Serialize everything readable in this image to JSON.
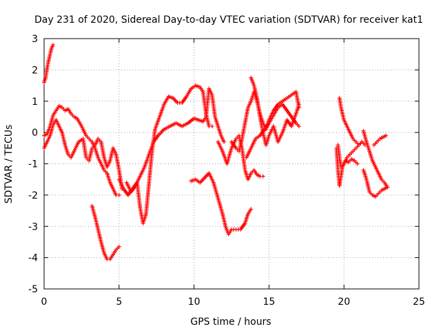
{
  "chart_data": {
    "type": "scatter",
    "title": "Day 231 of 2020, Sidereal Day-to-day VTEC variation (SDTVAR) for receiver kat1",
    "xlabel": "GPS time / hours",
    "ylabel": "SDTVAR / TECUs",
    "xlim": [
      0,
      25
    ],
    "ylim": [
      -5,
      3
    ],
    "xticks": [
      0,
      5,
      10,
      15,
      20,
      25
    ],
    "yticks": [
      -5,
      -4,
      -3,
      -2,
      -1,
      0,
      1,
      2,
      3
    ],
    "grid": true,
    "marker": "+",
    "color": "#ff0000",
    "series": [
      {
        "name": "trace-1",
        "points": [
          [
            0.0,
            1.6
          ],
          [
            0.1,
            1.75
          ],
          [
            0.2,
            2.05
          ],
          [
            0.3,
            2.3
          ],
          [
            0.4,
            2.5
          ],
          [
            0.5,
            2.7
          ],
          [
            0.6,
            2.8
          ]
        ]
      },
      {
        "name": "trace-2",
        "points": [
          [
            0.0,
            -0.1
          ],
          [
            0.2,
            -0.05
          ],
          [
            0.4,
            0.2
          ],
          [
            0.6,
            0.55
          ],
          [
            0.8,
            0.7
          ],
          [
            1.0,
            0.85
          ],
          [
            1.2,
            0.8
          ],
          [
            1.4,
            0.7
          ],
          [
            1.6,
            0.75
          ],
          [
            1.8,
            0.6
          ],
          [
            2.0,
            0.5
          ],
          [
            2.2,
            0.45
          ],
          [
            2.5,
            0.2
          ],
          [
            2.8,
            -0.1
          ],
          [
            3.0,
            -0.2
          ],
          [
            3.2,
            -0.3
          ],
          [
            3.4,
            -0.5
          ],
          [
            3.6,
            -0.8
          ],
          [
            3.8,
            -1.0
          ],
          [
            4.0,
            -1.2
          ],
          [
            4.2,
            -1.3
          ],
          [
            4.4,
            -1.6
          ],
          [
            4.6,
            -1.8
          ],
          [
            4.8,
            -2.0
          ],
          [
            5.0,
            -2.0
          ]
        ]
      },
      {
        "name": "trace-3",
        "points": [
          [
            0.0,
            -0.5
          ],
          [
            0.2,
            -0.3
          ],
          [
            0.4,
            -0.1
          ],
          [
            0.6,
            0.25
          ],
          [
            0.8,
            0.4
          ],
          [
            1.0,
            0.2
          ],
          [
            1.2,
            0.0
          ],
          [
            1.4,
            -0.4
          ],
          [
            1.6,
            -0.7
          ],
          [
            1.8,
            -0.8
          ],
          [
            2.0,
            -0.6
          ],
          [
            2.3,
            -0.3
          ],
          [
            2.6,
            -0.2
          ],
          [
            2.8,
            -0.8
          ],
          [
            3.0,
            -0.9
          ],
          [
            3.2,
            -0.5
          ],
          [
            3.4,
            -0.4
          ],
          [
            3.6,
            -0.2
          ],
          [
            3.8,
            -0.3
          ],
          [
            4.0,
            -0.8
          ],
          [
            4.2,
            -1.1
          ],
          [
            4.4,
            -0.9
          ],
          [
            4.6,
            -0.5
          ],
          [
            4.8,
            -0.7
          ],
          [
            5.0,
            -1.2
          ],
          [
            5.2,
            -1.8
          ]
        ]
      },
      {
        "name": "trace-4",
        "points": [
          [
            3.2,
            -2.35
          ],
          [
            3.4,
            -2.7
          ],
          [
            3.6,
            -3.1
          ],
          [
            3.8,
            -3.5
          ],
          [
            4.0,
            -3.85
          ],
          [
            4.2,
            -4.05
          ],
          [
            4.4,
            -4.05
          ],
          [
            4.6,
            -3.9
          ],
          [
            4.8,
            -3.75
          ],
          [
            5.0,
            -3.65
          ]
        ]
      },
      {
        "name": "trace-5",
        "points": [
          [
            5.0,
            -1.5
          ],
          [
            5.3,
            -1.8
          ],
          [
            5.6,
            -2.0
          ],
          [
            5.9,
            -1.8
          ],
          [
            6.2,
            -1.6
          ],
          [
            6.4,
            -2.4
          ],
          [
            6.6,
            -2.9
          ],
          [
            6.8,
            -2.6
          ],
          [
            7.0,
            -1.6
          ],
          [
            7.2,
            -0.6
          ],
          [
            7.4,
            0.1
          ],
          [
            7.7,
            0.5
          ],
          [
            8.0,
            0.9
          ],
          [
            8.3,
            1.15
          ],
          [
            8.6,
            1.1
          ],
          [
            8.9,
            0.95
          ],
          [
            9.2,
            0.95
          ],
          [
            9.5,
            1.15
          ],
          [
            9.8,
            1.4
          ],
          [
            10.1,
            1.5
          ],
          [
            10.4,
            1.45
          ],
          [
            10.6,
            1.3
          ],
          [
            10.8,
            0.6
          ],
          [
            11.0,
            0.2
          ],
          [
            11.2,
            0.2
          ]
        ]
      },
      {
        "name": "trace-6",
        "points": [
          [
            5.5,
            -1.6
          ],
          [
            5.8,
            -1.9
          ],
          [
            6.1,
            -1.7
          ],
          [
            6.4,
            -1.4
          ],
          [
            6.7,
            -1.1
          ],
          [
            7.0,
            -0.7
          ],
          [
            7.3,
            -0.3
          ],
          [
            7.6,
            -0.1
          ],
          [
            8.0,
            0.1
          ],
          [
            8.4,
            0.2
          ],
          [
            8.8,
            0.3
          ],
          [
            9.2,
            0.2
          ],
          [
            9.6,
            0.3
          ],
          [
            10.0,
            0.45
          ],
          [
            10.3,
            0.4
          ],
          [
            10.6,
            0.35
          ],
          [
            10.8,
            0.5
          ],
          [
            11.0,
            1.4
          ],
          [
            11.2,
            1.2
          ],
          [
            11.4,
            0.5
          ],
          [
            11.6,
            0.2
          ],
          [
            11.8,
            -0.1
          ],
          [
            12.0,
            -0.3
          ]
        ]
      },
      {
        "name": "trace-7",
        "points": [
          [
            9.8,
            -1.55
          ],
          [
            10.1,
            -1.5
          ],
          [
            10.4,
            -1.6
          ],
          [
            10.7,
            -1.45
          ],
          [
            11.0,
            -1.3
          ],
          [
            11.3,
            -1.6
          ],
          [
            11.6,
            -2.1
          ],
          [
            11.9,
            -2.6
          ],
          [
            12.1,
            -3.0
          ],
          [
            12.3,
            -3.25
          ],
          [
            12.5,
            -3.1
          ],
          [
            12.8,
            -3.1
          ],
          [
            13.1,
            -3.1
          ],
          [
            13.4,
            -2.9
          ],
          [
            13.6,
            -2.6
          ],
          [
            13.8,
            -2.45
          ]
        ]
      },
      {
        "name": "trace-8",
        "points": [
          [
            11.6,
            -0.3
          ],
          [
            11.9,
            -0.6
          ],
          [
            12.2,
            -1.0
          ],
          [
            12.5,
            -0.5
          ],
          [
            12.8,
            -0.2
          ],
          [
            13.0,
            -0.1
          ],
          [
            13.2,
            -0.5
          ],
          [
            13.4,
            -1.2
          ],
          [
            13.6,
            -1.5
          ],
          [
            13.8,
            -1.3
          ],
          [
            14.0,
            -1.2
          ],
          [
            14.2,
            -1.35
          ],
          [
            14.4,
            -1.4
          ],
          [
            14.6,
            -1.4
          ]
        ]
      },
      {
        "name": "trace-9",
        "points": [
          [
            12.5,
            -0.3
          ],
          [
            12.8,
            -0.5
          ],
          [
            13.0,
            -0.6
          ],
          [
            13.2,
            -0.2
          ],
          [
            13.4,
            0.3
          ],
          [
            13.6,
            0.8
          ],
          [
            13.8,
            1.0
          ],
          [
            14.0,
            1.3
          ],
          [
            14.2,
            1.0
          ],
          [
            14.4,
            0.6
          ],
          [
            14.6,
            0.3
          ],
          [
            14.8,
            0.1
          ],
          [
            15.0,
            0.4
          ],
          [
            15.3,
            0.7
          ],
          [
            15.6,
            0.9
          ],
          [
            15.9,
            1.0
          ],
          [
            16.2,
            1.1
          ],
          [
            16.5,
            1.2
          ],
          [
            16.8,
            1.3
          ],
          [
            17.0,
            0.8
          ]
        ]
      },
      {
        "name": "trace-10",
        "points": [
          [
            13.5,
            -0.8
          ],
          [
            13.8,
            -0.5
          ],
          [
            14.1,
            -0.2
          ],
          [
            14.4,
            -0.1
          ],
          [
            14.7,
            0.1
          ],
          [
            15.0,
            0.3
          ],
          [
            15.3,
            0.55
          ],
          [
            15.6,
            0.8
          ],
          [
            15.9,
            0.9
          ],
          [
            16.2,
            0.7
          ],
          [
            16.5,
            0.5
          ],
          [
            16.8,
            0.3
          ],
          [
            17.0,
            0.2
          ]
        ]
      },
      {
        "name": "trace-11",
        "points": [
          [
            13.8,
            1.75
          ],
          [
            14.0,
            1.5
          ],
          [
            14.2,
            1.1
          ],
          [
            14.4,
            0.5
          ],
          [
            14.6,
            0.0
          ],
          [
            14.8,
            -0.4
          ],
          [
            15.0,
            -0.1
          ],
          [
            15.3,
            0.2
          ],
          [
            15.6,
            -0.3
          ],
          [
            15.9,
            0.0
          ],
          [
            16.2,
            0.4
          ],
          [
            16.5,
            0.2
          ],
          [
            16.8,
            0.6
          ],
          [
            17.0,
            0.9
          ]
        ]
      },
      {
        "name": "trace-12",
        "points": [
          [
            19.7,
            1.1
          ],
          [
            19.8,
            0.8
          ],
          [
            20.0,
            0.4
          ],
          [
            20.2,
            0.2
          ],
          [
            20.4,
            0.0
          ],
          [
            20.6,
            -0.2
          ],
          [
            20.8,
            -0.3
          ],
          [
            21.0,
            -0.4
          ],
          [
            21.2,
            -0.3
          ],
          [
            21.4,
            -0.4
          ]
        ]
      },
      {
        "name": "trace-13",
        "points": [
          [
            19.6,
            -0.4
          ],
          [
            19.7,
            -0.8
          ],
          [
            19.8,
            -1.1
          ],
          [
            20.0,
            -1.0
          ],
          [
            20.2,
            -0.8
          ],
          [
            20.4,
            -0.7
          ],
          [
            20.6,
            -0.6
          ],
          [
            20.8,
            -0.5
          ],
          [
            21.0,
            -0.4
          ],
          [
            21.2,
            -0.3
          ]
        ]
      },
      {
        "name": "trace-14",
        "points": [
          [
            19.5,
            -0.5
          ],
          [
            19.6,
            -1.2
          ],
          [
            19.7,
            -1.7
          ],
          [
            19.9,
            -1.1
          ],
          [
            20.1,
            -0.9
          ],
          [
            20.3,
            -0.95
          ],
          [
            20.5,
            -0.85
          ],
          [
            20.7,
            -0.9
          ],
          [
            20.9,
            -1.0
          ]
        ]
      },
      {
        "name": "trace-15",
        "points": [
          [
            21.3,
            -1.2
          ],
          [
            21.5,
            -1.5
          ],
          [
            21.7,
            -1.9
          ],
          [
            21.9,
            -2.0
          ],
          [
            22.1,
            -2.05
          ],
          [
            22.3,
            -1.95
          ],
          [
            22.5,
            -1.85
          ],
          [
            22.7,
            -1.8
          ],
          [
            22.9,
            -1.75
          ]
        ]
      },
      {
        "name": "trace-16",
        "points": [
          [
            21.3,
            0.05
          ],
          [
            21.5,
            -0.3
          ],
          [
            21.7,
            -0.6
          ],
          [
            21.9,
            -0.9
          ],
          [
            22.1,
            -1.1
          ],
          [
            22.3,
            -1.3
          ],
          [
            22.5,
            -1.5
          ],
          [
            22.7,
            -1.6
          ],
          [
            22.9,
            -1.75
          ]
        ]
      },
      {
        "name": "trace-17",
        "points": [
          [
            22.0,
            -0.4
          ],
          [
            22.2,
            -0.3
          ],
          [
            22.4,
            -0.2
          ],
          [
            22.6,
            -0.15
          ],
          [
            22.8,
            -0.1
          ]
        ]
      }
    ]
  }
}
